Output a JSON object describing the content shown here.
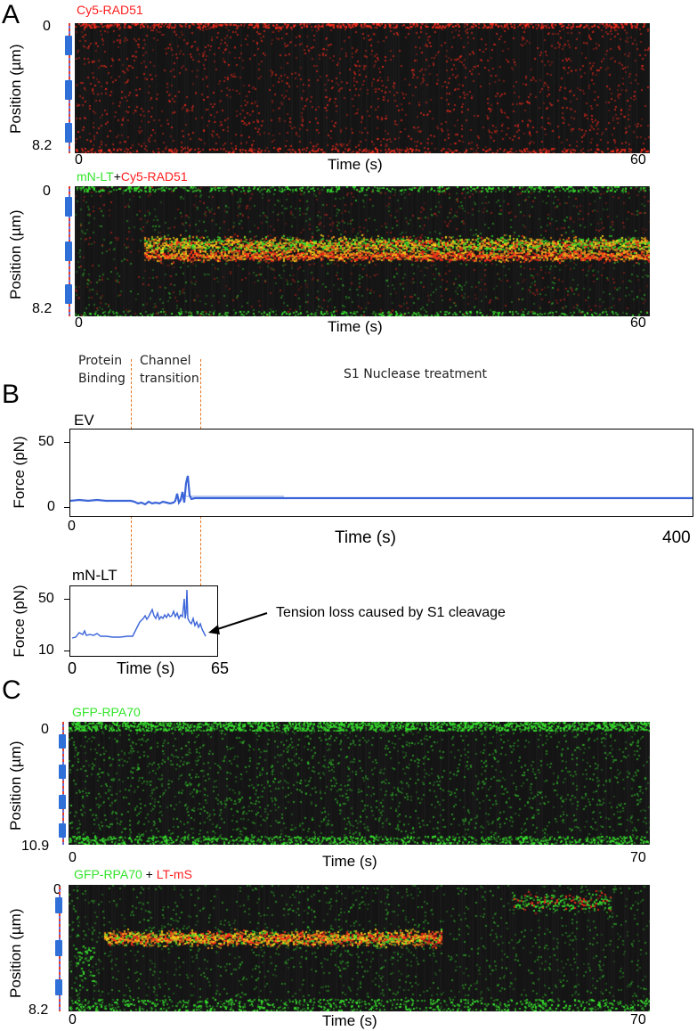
{
  "panel_a": {
    "letter": "A",
    "top": {
      "channel": "Cy5-RAD51",
      "y_axis_label": "Position (µm)",
      "y_ticks": [
        "0",
        "8.2"
      ],
      "x_axis_label": "Time (s)",
      "x_ticks": [
        "0",
        "60"
      ]
    },
    "bottom": {
      "channel_green": "mN-LT",
      "plus": "+",
      "channel_red": "Cy5-RAD51",
      "y_axis_label": "Position (µm)",
      "y_ticks": [
        "0",
        "8.2"
      ],
      "x_axis_label": "Time (s)",
      "x_ticks": [
        "0",
        "60"
      ]
    }
  },
  "panel_b": {
    "letter": "B",
    "stages": {
      "stage1_line1": "Protein",
      "stage1_line2": "Binding",
      "stage2_line1": "Channel",
      "stage2_line2": "transition",
      "stage3": "S1 Nuclease treatment"
    },
    "ev_plot": {
      "label": "EV",
      "y_axis_label": "Force (pN)",
      "y_ticks": [
        "50",
        "0"
      ],
      "x_axis_label": "Time (s)",
      "x_ticks": [
        "0",
        "400"
      ]
    },
    "mnlt_plot": {
      "label": "mN-LT",
      "y_axis_label": "Force (pN)",
      "y_ticks": [
        "50",
        "10"
      ],
      "x_axis_label": "Time (s)",
      "x_ticks": [
        "0",
        "65"
      ],
      "annotation": "Tension loss caused by S1 cleavage"
    }
  },
  "panel_c": {
    "letter": "C",
    "top": {
      "channel": "GFP-RPA70",
      "y_axis_label": "Position (µm)",
      "y_ticks": [
        "0",
        "10.9"
      ],
      "x_axis_label": "Time (s)",
      "x_ticks": [
        "0",
        "70"
      ]
    },
    "bottom": {
      "channel_green": "GFP-RPA70",
      "plus": " + ",
      "channel_red": "LT-mS",
      "y_axis_label": "Position (µm)",
      "y_ticks": [
        "0",
        "8.2"
      ],
      "x_axis_label": "Time (s)",
      "x_ticks": [
        "0",
        "70"
      ]
    }
  },
  "colors": {
    "green_channel": "#33e52a",
    "red_channel": "#ff1d1d",
    "merge": "#f2d21a",
    "force_trace": "#3b64d8",
    "stage_divider": "#e8741c",
    "dna_segment": "#2f6fd8"
  }
}
